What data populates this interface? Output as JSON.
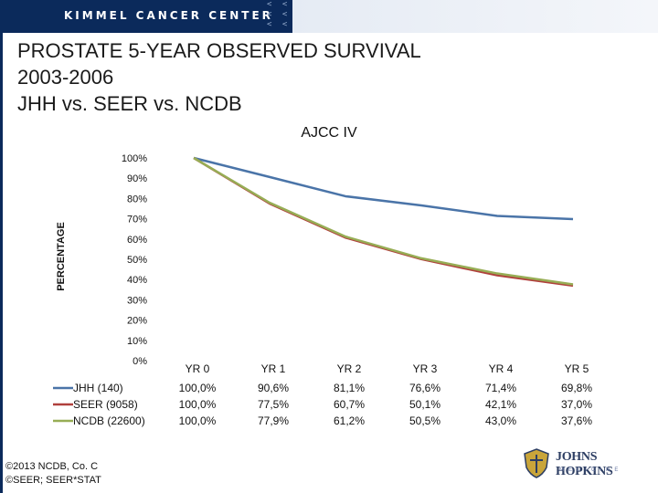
{
  "header": {
    "title": "KIMMEL CANCER CENTER",
    "chevrons": [
      "< < <",
      "< < <",
      "< < <"
    ],
    "colors": {
      "bar": "#0b2a5b"
    }
  },
  "slide": {
    "title_lines": [
      "PROSTATE 5-YEAR OBSERVED SURVIVAL",
      "2003-2006",
      "JHH vs. SEER vs. NCDB"
    ]
  },
  "chart_data": {
    "type": "line",
    "title": "AJCC IV",
    "ylabel": "PERCENTAGE",
    "ylim": [
      0,
      100
    ],
    "y_ticks": [
      "100%",
      "90%",
      "80%",
      "70%",
      "60%",
      "50%",
      "40%",
      "30%",
      "20%",
      "10%",
      "0%"
    ],
    "categories": [
      "YR 0",
      "YR 1",
      "YR 2",
      "YR 3",
      "YR 4",
      "YR 5"
    ],
    "series": [
      {
        "name": "JHH (140)",
        "color": "#4a74a8",
        "values": [
          100.0,
          90.6,
          81.1,
          76.6,
          71.4,
          69.8
        ],
        "labels": [
          "100,0%",
          "90,6%",
          "81,1%",
          "76,6%",
          "71,4%",
          "69,8%"
        ]
      },
      {
        "name": "SEER (9058)",
        "color": "#b0403c",
        "values": [
          100.0,
          77.5,
          60.7,
          50.1,
          42.1,
          37.0
        ],
        "labels": [
          "100,0%",
          "77,5%",
          "60,7%",
          "50,1%",
          "42,1%",
          "37,0%"
        ]
      },
      {
        "name": "NCDB (22600)",
        "color": "#97ad55",
        "values": [
          100.0,
          77.9,
          61.2,
          50.5,
          43.0,
          37.6
        ],
        "labels": [
          "100,0%",
          "77,9%",
          "61,2%",
          "50,5%",
          "43,0%",
          "37,6%"
        ]
      }
    ],
    "grid": false,
    "legend": "data-table"
  },
  "footer": {
    "copyright_lines": [
      "©2013 NCDB, Co. C",
      "©SEER; SEER*STAT"
    ],
    "logo_text": "JOHNS HOPKINS",
    "logo_sub": "MEDICINE"
  }
}
